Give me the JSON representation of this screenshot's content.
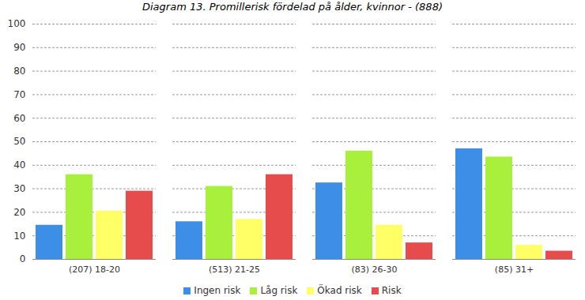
{
  "chart_data": {
    "type": "bar",
    "title": "Diagram 13. Promillerisk fördelad på ålder, kvinnor - (888)",
    "categories": [
      "(207) 18-20",
      "(513) 21-25",
      "(83) 26-30",
      "(85) 31+"
    ],
    "series": [
      {
        "name": "Ingen risk",
        "color": "#3d8ee6",
        "values": [
          14.5,
          16,
          32.5,
          47
        ]
      },
      {
        "name": "Låg risk",
        "color": "#a8f03c",
        "values": [
          36,
          31,
          46,
          43.5
        ]
      },
      {
        "name": "Ökad risk",
        "color": "#ffff66",
        "values": [
          20.5,
          17,
          14.5,
          6
        ]
      },
      {
        "name": "Risk",
        "color": "#e64c4c",
        "values": [
          29,
          36,
          7,
          3.5
        ]
      }
    ],
    "ylim": [
      0,
      100
    ],
    "yticks": [
      0,
      10,
      20,
      30,
      40,
      50,
      60,
      70,
      80,
      90,
      100
    ],
    "grid": true,
    "legend": "bottom"
  }
}
